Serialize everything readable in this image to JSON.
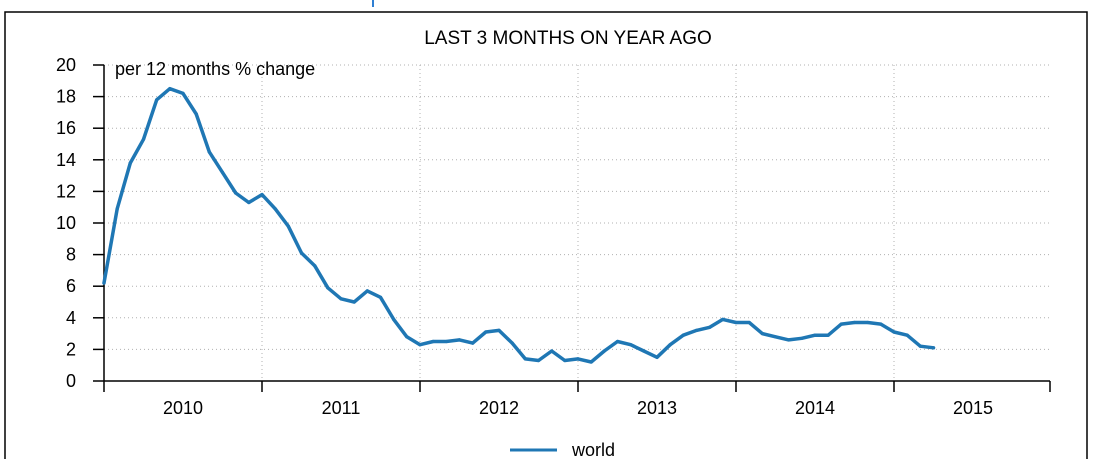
{
  "chart_data": {
    "type": "line",
    "title": "LAST 3 MONTHS ON YEAR AGO",
    "subtitle": "per 12 months % change",
    "xlabel": "",
    "ylabel": "",
    "ylim": [
      0,
      20
    ],
    "y_ticks": [
      0,
      2,
      4,
      6,
      8,
      10,
      12,
      14,
      16,
      18,
      20
    ],
    "x_tick_labels": [
      "2010",
      "2011",
      "2012",
      "2013",
      "2014",
      "2015"
    ],
    "x_start": "2010-01",
    "grid": true,
    "legend_position": "bottom",
    "series": [
      {
        "name": "world",
        "color": "#1f77b4",
        "x": [
          "2010-01",
          "2010-02",
          "2010-03",
          "2010-04",
          "2010-05",
          "2010-06",
          "2010-07",
          "2010-08",
          "2010-09",
          "2010-10",
          "2010-11",
          "2010-12",
          "2011-01",
          "2011-02",
          "2011-03",
          "2011-04",
          "2011-05",
          "2011-06",
          "2011-07",
          "2011-08",
          "2011-09",
          "2011-10",
          "2011-11",
          "2011-12",
          "2012-01",
          "2012-02",
          "2012-03",
          "2012-04",
          "2012-05",
          "2012-06",
          "2012-07",
          "2012-08",
          "2012-09",
          "2012-10",
          "2012-11",
          "2012-12",
          "2013-01",
          "2013-02",
          "2013-03",
          "2013-04",
          "2013-05",
          "2013-06",
          "2013-07",
          "2013-08",
          "2013-09",
          "2013-10",
          "2013-11",
          "2013-12",
          "2014-01",
          "2014-02",
          "2014-03",
          "2014-04",
          "2014-05",
          "2014-06",
          "2014-07",
          "2014-08",
          "2014-09",
          "2014-10",
          "2014-11",
          "2014-12",
          "2015-01",
          "2015-02",
          "2015-03",
          "2015-04"
        ],
        "values": [
          6.2,
          10.9,
          13.8,
          15.3,
          17.8,
          18.5,
          18.2,
          16.9,
          14.5,
          13.2,
          11.9,
          11.3,
          11.8,
          10.9,
          9.8,
          8.1,
          7.3,
          5.9,
          5.2,
          5.0,
          5.7,
          5.3,
          3.9,
          2.8,
          2.3,
          2.5,
          2.5,
          2.6,
          2.4,
          3.1,
          3.2,
          2.4,
          1.4,
          1.3,
          1.9,
          1.3,
          1.4,
          1.2,
          1.9,
          2.5,
          2.3,
          1.9,
          1.5,
          2.3,
          2.9,
          3.2,
          3.4,
          3.9,
          3.7,
          3.7,
          3.0,
          2.8,
          2.6,
          2.7,
          2.9,
          2.9,
          3.6,
          3.7,
          3.7,
          3.6,
          3.1,
          2.9,
          2.2,
          2.1
        ]
      }
    ]
  }
}
